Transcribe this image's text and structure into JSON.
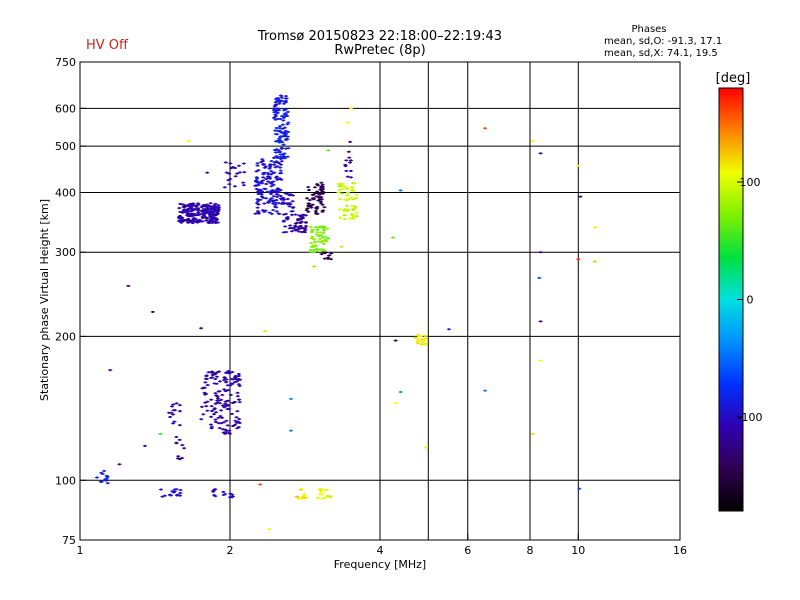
{
  "header": {
    "title_line1": "Tromsø 20150823 22:18:00–22:19:43",
    "title_line2": "RwPretec (8p)",
    "status": "HV Off",
    "status_color": "#d0201a",
    "stats_heading": "Phases",
    "stats_line1": "mean, sd,O: -91.3, 17.1",
    "stats_line2": "mean, sd,X:  74.1, 19.5"
  },
  "chart_data": {
    "type": "scatter",
    "xlabel": "Frequency [MHz]",
    "ylabel": "Stationary phase Virtual Height [km]",
    "xscale": "log",
    "yscale": "log",
    "xlim": [
      1,
      16
    ],
    "ylim": [
      75,
      750
    ],
    "xticks": [
      {
        "value": 1,
        "label": "1"
      },
      {
        "value": 2,
        "label": "2"
      },
      {
        "value": 4,
        "label": "4"
      },
      {
        "value": 6,
        "label": "6"
      },
      {
        "value": 8,
        "label": "8"
      },
      {
        "value": 10,
        "label": "10"
      },
      {
        "value": 16,
        "label": "16"
      }
    ],
    "yticks": [
      {
        "value": 75,
        "label": "75"
      },
      {
        "value": 100,
        "label": "100"
      },
      {
        "value": 200,
        "label": "200"
      },
      {
        "value": 300,
        "label": "300"
      },
      {
        "value": 400,
        "label": "400"
      },
      {
        "value": 500,
        "label": "500"
      },
      {
        "value": 600,
        "label": "600"
      },
      {
        "value": 750,
        "label": "750"
      }
    ],
    "xgrid": [
      2,
      4,
      5,
      6,
      8,
      10
    ],
    "ygrid": [
      100,
      200,
      300,
      400,
      500,
      600
    ],
    "grid": true,
    "colorbar": {
      "label": "[deg]",
      "range": [
        -180,
        180
      ],
      "ticks": [
        {
          "value": 100,
          "label": "100"
        },
        {
          "value": 0,
          "label": "0"
        },
        {
          "value": -100,
          "label": "-100"
        }
      ]
    },
    "clusters": [
      {
        "f": [
          1.58,
          1.9
        ],
        "h": [
          345,
          380
        ],
        "phase": -110,
        "n": 230
      },
      {
        "f": [
          1.95,
          2.15
        ],
        "h": [
          410,
          470
        ],
        "phase": -105,
        "n": 20
      },
      {
        "f": [
          2.25,
          2.55
        ],
        "h": [
          360,
          470
        ],
        "phase": -95,
        "n": 150
      },
      {
        "f": [
          2.45,
          2.62
        ],
        "h": [
          470,
          640
        ],
        "phase": -85,
        "n": 130
      },
      {
        "f": [
          2.55,
          2.68
        ],
        "h": [
          330,
          400
        ],
        "phase": -100,
        "n": 40
      },
      {
        "f": [
          2.7,
          2.85
        ],
        "h": [
          330,
          360
        ],
        "phase": -120,
        "n": 40
      },
      {
        "f": [
          2.85,
          3.1
        ],
        "h": [
          360,
          420
        ],
        "phase": -145,
        "n": 60
      },
      {
        "f": [
          2.9,
          3.15
        ],
        "h": [
          300,
          340
        ],
        "phase": 70,
        "n": 60
      },
      {
        "f": [
          3.05,
          3.2
        ],
        "h": [
          290,
          300
        ],
        "phase": -150,
        "n": 10
      },
      {
        "f": [
          3.3,
          3.6
        ],
        "h": [
          350,
          420
        ],
        "phase": 95,
        "n": 55
      },
      {
        "f": [
          3.4,
          3.5
        ],
        "h": [
          420,
          520
        ],
        "phase": -120,
        "n": 12
      },
      {
        "f": [
          1.75,
          2.1
        ],
        "h": [
          125,
          170
        ],
        "phase": -110,
        "n": 150
      },
      {
        "f": [
          1.5,
          1.6
        ],
        "h": [
          130,
          145
        ],
        "phase": -110,
        "n": 14
      },
      {
        "f": [
          1.55,
          1.62
        ],
        "h": [
          110,
          125
        ],
        "phase": -120,
        "n": 10
      },
      {
        "f": [
          1.08,
          1.15
        ],
        "h": [
          98,
          105
        ],
        "phase": -85,
        "n": 14
      },
      {
        "f": [
          1.45,
          1.6
        ],
        "h": [
          92,
          96
        ],
        "phase": -95,
        "n": 16
      },
      {
        "f": [
          1.85,
          2.05
        ],
        "h": [
          92,
          96
        ],
        "phase": -100,
        "n": 14
      },
      {
        "f": [
          2.7,
          2.85
        ],
        "h": [
          91,
          96
        ],
        "phase": 115,
        "n": 12
      },
      {
        "f": [
          3.0,
          3.2
        ],
        "h": [
          91,
          96
        ],
        "phase": 100,
        "n": 14
      },
      {
        "f": [
          4.7,
          5.1
        ],
        "h": [
          192,
          202
        ],
        "phase": 110,
        "n": 20
      }
    ],
    "points": [
      {
        "f": 1.65,
        "h": 512,
        "phase": 110
      },
      {
        "f": 1.8,
        "h": 440,
        "phase": -105
      },
      {
        "f": 1.25,
        "h": 255,
        "phase": -130
      },
      {
        "f": 1.4,
        "h": 225,
        "phase": -130
      },
      {
        "f": 1.75,
        "h": 208,
        "phase": -120
      },
      {
        "f": 2.35,
        "h": 205,
        "phase": 90
      },
      {
        "f": 3.5,
        "h": 600,
        "phase": 110
      },
      {
        "f": 3.45,
        "h": 560,
        "phase": 110
      },
      {
        "f": 3.15,
        "h": 490,
        "phase": 60
      },
      {
        "f": 2.95,
        "h": 280,
        "phase": 80
      },
      {
        "f": 4.4,
        "h": 404,
        "phase": -50
      },
      {
        "f": 4.25,
        "h": 322,
        "phase": 60
      },
      {
        "f": 4.3,
        "h": 196,
        "phase": -140
      },
      {
        "f": 4.4,
        "h": 153,
        "phase": -40
      },
      {
        "f": 4.3,
        "h": 145,
        "phase": 110
      },
      {
        "f": 5.5,
        "h": 207,
        "phase": -80
      },
      {
        "f": 6.5,
        "h": 545,
        "phase": 160
      },
      {
        "f": 6.5,
        "h": 154,
        "phase": -40
      },
      {
        "f": 8.1,
        "h": 512,
        "phase": 110
      },
      {
        "f": 8.4,
        "h": 483,
        "phase": -110
      },
      {
        "f": 8.4,
        "h": 300,
        "phase": -110
      },
      {
        "f": 8.35,
        "h": 265,
        "phase": -60
      },
      {
        "f": 8.4,
        "h": 215,
        "phase": -110
      },
      {
        "f": 8.4,
        "h": 178,
        "phase": 110
      },
      {
        "f": 8.1,
        "h": 125,
        "phase": 120
      },
      {
        "f": 10.0,
        "h": 455,
        "phase": 110
      },
      {
        "f": 10.1,
        "h": 392,
        "phase": -130
      },
      {
        "f": 10.0,
        "h": 290,
        "phase": 170
      },
      {
        "f": 10.8,
        "h": 338,
        "phase": 110
      },
      {
        "f": 10.8,
        "h": 287,
        "phase": 80
      },
      {
        "f": 10.05,
        "h": 96,
        "phase": -60
      },
      {
        "f": 4.95,
        "h": 117,
        "phase": 110
      },
      {
        "f": 2.4,
        "h": 79,
        "phase": 110
      },
      {
        "f": 2.3,
        "h": 98,
        "phase": 160
      },
      {
        "f": 1.35,
        "h": 118,
        "phase": -100
      },
      {
        "f": 1.2,
        "h": 108,
        "phase": -130
      },
      {
        "f": 1.15,
        "h": 170,
        "phase": -110
      },
      {
        "f": 1.45,
        "h": 125,
        "phase": 50
      },
      {
        "f": 2.65,
        "h": 148,
        "phase": -40
      },
      {
        "f": 2.65,
        "h": 127,
        "phase": -40
      },
      {
        "f": 3.35,
        "h": 308,
        "phase": 120
      }
    ]
  }
}
